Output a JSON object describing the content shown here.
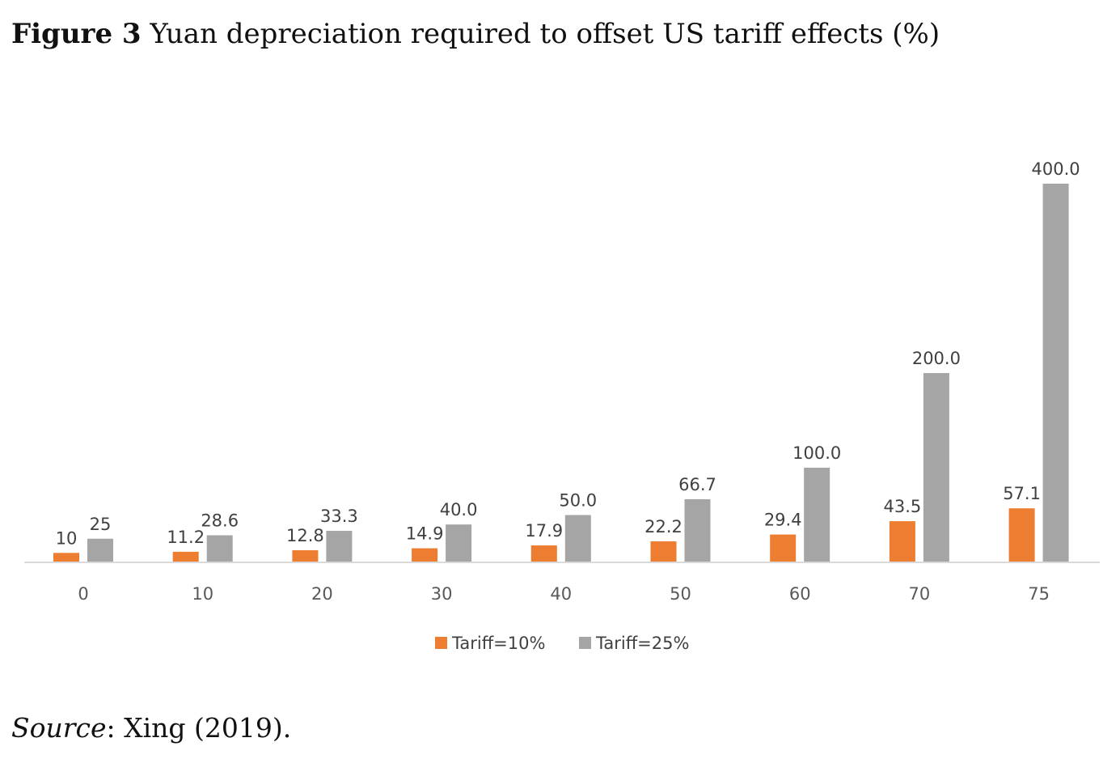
{
  "figure": {
    "label": "Figure 3",
    "caption": "Yuan depreciation required to offset US tariff effects (%)"
  },
  "source": {
    "label": "Source",
    "text": ": Xing (2019)."
  },
  "colors": {
    "tariff10": "#ED7D31",
    "tariff25": "#A5A5A5",
    "axis": "#D9D9D9",
    "label": "#404040",
    "tick": "#595959"
  },
  "chart_data": {
    "type": "bar",
    "categories": [
      "0",
      "10",
      "20",
      "30",
      "40",
      "50",
      "60",
      "70",
      "75"
    ],
    "series": [
      {
        "name": "Tariff=10%",
        "values": [
          10,
          11.2,
          12.8,
          14.9,
          17.9,
          22.2,
          29.4,
          43.5,
          57.1
        ],
        "labels": [
          "10",
          "11.2",
          "12.8",
          "14.9",
          "17.9",
          "22.2",
          "29.4",
          "43.5",
          "57.1"
        ]
      },
      {
        "name": "Tariff=25%",
        "values": [
          25,
          28.6,
          33.3,
          40.0,
          50.0,
          66.7,
          100.0,
          200.0,
          400.0
        ],
        "labels": [
          "25",
          "28.6",
          "33.3",
          "40.0",
          "50.0",
          "66.7",
          "100.0",
          "200.0",
          "400.0"
        ]
      }
    ],
    "title": "",
    "xlabel": "",
    "ylabel": "",
    "ylim": [
      0,
      400
    ],
    "grid": false,
    "legend": "bottom"
  }
}
